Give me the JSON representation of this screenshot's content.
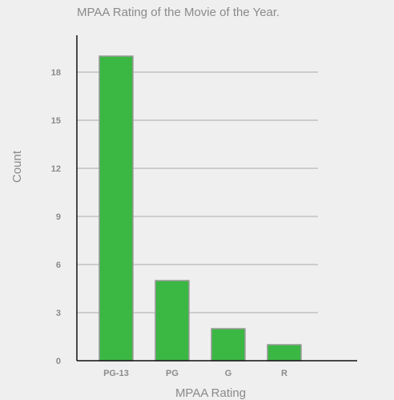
{
  "chart_data": {
    "type": "bar",
    "title": "MPAA Rating of the Movie of the Year.",
    "xlabel": "MPAA Rating",
    "ylabel": "Count",
    "categories": [
      "PG-13",
      "PG",
      "G",
      "R"
    ],
    "values": [
      19,
      5,
      2,
      1
    ],
    "yticks": [
      "0",
      "3",
      "6",
      "9",
      "12",
      "15",
      "18"
    ],
    "ylim": [
      0,
      19
    ],
    "grid": true,
    "bar_color": "#3bb744"
  }
}
